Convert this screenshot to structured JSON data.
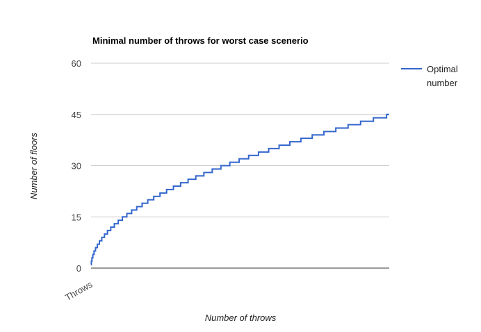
{
  "chart_data": {
    "type": "line",
    "title": "Minimal number of throws for worst case scenerio",
    "xlabel": "Number of throws",
    "ylabel": "Number of floors",
    "x_category_label": "Throws",
    "ylim": [
      0,
      60
    ],
    "y_ticks": [
      0,
      15,
      30,
      45,
      60
    ],
    "grid": true,
    "legend": "right",
    "series": [
      {
        "name": "Optimal number",
        "color": "#3366cc",
        "step_function": "minimal n such that n(n+1)/2 >= floors",
        "x_count": 1000,
        "values_end": 45,
        "values_start": 1
      }
    ],
    "colors": {
      "series": "#3366cc",
      "grid": "#cccccc",
      "baseline": "#333333"
    }
  },
  "legend": {
    "line1": "Optimal",
    "line2": "number"
  }
}
